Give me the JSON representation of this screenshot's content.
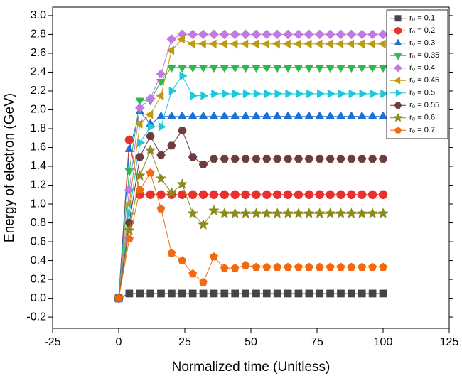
{
  "chart_data": {
    "type": "line",
    "x_label": "Normalized time (Unitless)",
    "y_label": "Energy of electron (GeV)",
    "x": [
      0,
      4,
      8,
      12,
      16,
      20,
      24,
      28,
      32,
      36,
      40,
      44,
      48,
      52,
      56,
      60,
      64,
      68,
      72,
      76,
      80,
      84,
      88,
      92,
      96,
      100
    ],
    "xlim": [
      -25,
      125
    ],
    "xticks": [
      -25,
      0,
      25,
      50,
      75,
      100,
      125
    ],
    "ylim": [
      -0.32,
      3.09
    ],
    "yticks": [
      -0.2,
      {
        "value": 0,
        "label": "0.0"
      },
      0.2,
      0.4,
      0.6,
      0.8,
      {
        "value": 1,
        "label": "1.0"
      },
      1.2,
      1.4,
      1.6,
      1.8,
      {
        "value": 2,
        "label": "2.0"
      },
      2.2,
      2.4,
      2.6,
      2.8,
      {
        "value": 3,
        "label": "3.0"
      }
    ],
    "legend": "upper right",
    "series": [
      {
        "name": "r₀ = 0.1",
        "color": "#454545",
        "marker": "square",
        "values": [
          0,
          0.05,
          0.05,
          0.05,
          0.05,
          0.05,
          0.05,
          0.05,
          0.05,
          0.05,
          0.05,
          0.05,
          0.05,
          0.05,
          0.05,
          0.05,
          0.05,
          0.05,
          0.05,
          0.05,
          0.05,
          0.05,
          0.05,
          0.05,
          0.05,
          0.05
        ]
      },
      {
        "name": "r₀ = 0.2",
        "color": "#e8302c",
        "marker": "circle",
        "values": [
          0,
          1.68,
          1.1,
          1.1,
          1.1,
          1.1,
          1.1,
          1.1,
          1.1,
          1.1,
          1.1,
          1.1,
          1.1,
          1.1,
          1.1,
          1.1,
          1.1,
          1.1,
          1.1,
          1.1,
          1.1,
          1.1,
          1.1,
          1.1,
          1.1,
          1.1
        ]
      },
      {
        "name": "r₀ = 0.3",
        "color": "#1f6fd6",
        "marker": "triangle-up",
        "values": [
          0,
          1.58,
          1.98,
          1.85,
          1.93,
          1.93,
          1.93,
          1.93,
          1.93,
          1.93,
          1.93,
          1.93,
          1.93,
          1.93,
          1.93,
          1.93,
          1.93,
          1.93,
          1.93,
          1.93,
          1.93,
          1.93,
          1.93,
          1.93,
          1.93,
          1.93
        ]
      },
      {
        "name": "r₀ = 0.35",
        "color": "#2cb84e",
        "marker": "triangle-down",
        "values": [
          0,
          1.35,
          2.1,
          2.1,
          2.3,
          2.45,
          2.45,
          2.45,
          2.45,
          2.45,
          2.45,
          2.45,
          2.45,
          2.45,
          2.45,
          2.45,
          2.45,
          2.45,
          2.45,
          2.45,
          2.45,
          2.45,
          2.45,
          2.45,
          2.45,
          2.45
        ]
      },
      {
        "name": "r₀ = 0.4",
        "color": "#c07ae0",
        "marker": "diamond",
        "values": [
          0,
          1.15,
          2.02,
          2.12,
          2.38,
          2.75,
          2.8,
          2.8,
          2.8,
          2.8,
          2.8,
          2.8,
          2.8,
          2.8,
          2.8,
          2.8,
          2.8,
          2.8,
          2.8,
          2.8,
          2.8,
          2.8,
          2.8,
          2.8,
          2.8,
          2.8
        ]
      },
      {
        "name": "r₀ = 0.45",
        "color": "#bc9a12",
        "marker": "triangle-left",
        "values": [
          0,
          1.0,
          1.85,
          1.95,
          2.15,
          2.63,
          2.75,
          2.7,
          2.7,
          2.7,
          2.7,
          2.7,
          2.7,
          2.7,
          2.7,
          2.7,
          2.7,
          2.7,
          2.7,
          2.7,
          2.7,
          2.7,
          2.7,
          2.7,
          2.7,
          2.7
        ]
      },
      {
        "name": "r₀ = 0.5",
        "color": "#1ec8d8",
        "marker": "triangle-right",
        "values": [
          0,
          0.9,
          1.65,
          1.82,
          1.82,
          2.2,
          2.36,
          2.15,
          2.15,
          2.17,
          2.17,
          2.17,
          2.17,
          2.17,
          2.17,
          2.17,
          2.17,
          2.17,
          2.17,
          2.17,
          2.17,
          2.17,
          2.17,
          2.17,
          2.17,
          2.17
        ]
      },
      {
        "name": "r₀ = 0.55",
        "color": "#6e3c3c",
        "marker": "hexagon",
        "values": [
          0,
          0.8,
          1.5,
          1.72,
          1.52,
          1.62,
          1.78,
          1.5,
          1.42,
          1.48,
          1.48,
          1.48,
          1.48,
          1.48,
          1.48,
          1.48,
          1.48,
          1.48,
          1.48,
          1.48,
          1.48,
          1.48,
          1.48,
          1.48,
          1.48,
          1.48
        ]
      },
      {
        "name": "r₀ = 0.6",
        "color": "#8c8a1c",
        "marker": "star",
        "values": [
          0,
          0.72,
          1.3,
          1.57,
          1.27,
          1.12,
          1.21,
          0.9,
          0.78,
          0.93,
          0.9,
          0.9,
          0.9,
          0.9,
          0.9,
          0.9,
          0.9,
          0.9,
          0.9,
          0.9,
          0.9,
          0.9,
          0.9,
          0.9,
          0.9,
          0.9
        ]
      },
      {
        "name": "r₀ = 0.7",
        "color": "#f26a10",
        "marker": "pentagon",
        "values": [
          0,
          0.63,
          1.15,
          1.33,
          0.95,
          0.48,
          0.4,
          0.26,
          0.17,
          0.44,
          0.32,
          0.32,
          0.35,
          0.33,
          0.33,
          0.33,
          0.33,
          0.33,
          0.33,
          0.33,
          0.33,
          0.33,
          0.33,
          0.33,
          0.33,
          0.33
        ]
      }
    ]
  }
}
